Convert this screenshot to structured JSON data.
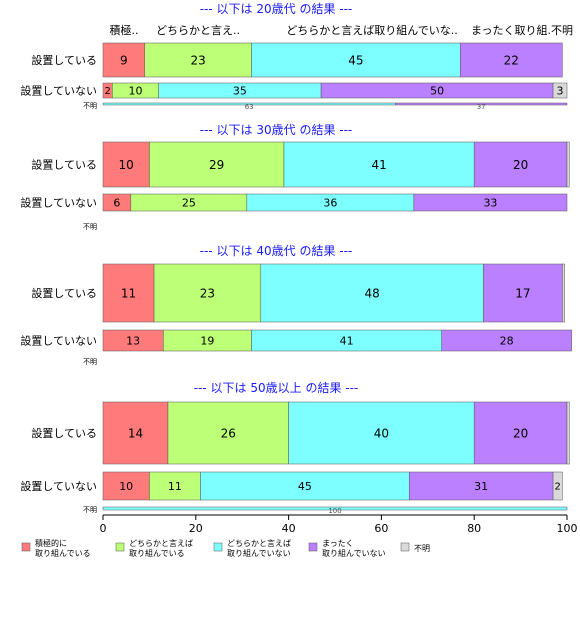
{
  "chart_data": {
    "type": "bar",
    "orientation": "horizontal",
    "stacked": true,
    "xlim": [
      0,
      100
    ],
    "xticks": [
      "0",
      "20",
      "40",
      "60",
      "80",
      "100"
    ],
    "grid": false,
    "legend_position": "bottom",
    "column_headers": [
      "積極..",
      "どちらかと言え..",
      "どちらかと言えば取り組んでいな..",
      "まったく取り組.不明"
    ],
    "series": [
      {
        "name": "積極的に\n取り組んでいる",
        "color": "#ff7b7b"
      },
      {
        "name": "どちらかと言えば\n取り組んでいる",
        "color": "#bdff76"
      },
      {
        "name": "どちらかと言えば\n取り組んでいない",
        "color": "#7dffff"
      },
      {
        "name": "まったく\n取り組んでいない",
        "color": "#bb80ff"
      },
      {
        "name": "不明",
        "color": "#d9d9d9"
      }
    ],
    "panels": [
      {
        "title": "--- 以下は 20歳代 の結果 ---",
        "rows": [
          {
            "label": "設置している",
            "values": [
              9,
              23,
              45,
              22,
              0
            ],
            "labels": [
              "9",
              "23",
              "45",
              "22",
              ""
            ]
          },
          {
            "label": "設置していない",
            "values": [
              2,
              10,
              35,
              50,
              3
            ],
            "labels": [
              "2",
              "10",
              "35",
              "50",
              "3"
            ]
          },
          {
            "label": "不明",
            "values": [
              0,
              0,
              63,
              37,
              0
            ],
            "labels": [
              "",
              "",
              "63",
              "37",
              ""
            ]
          }
        ]
      },
      {
        "title": "--- 以下は 30歳代 の結果 ---",
        "rows": [
          {
            "label": "設置している",
            "values": [
              10,
              29,
              41,
              20,
              0.5
            ],
            "labels": [
              "10",
              "29",
              "41",
              "20",
              ""
            ]
          },
          {
            "label": "設置していない",
            "values": [
              6,
              25,
              36,
              33,
              0
            ],
            "labels": [
              "6",
              "25",
              "36",
              "33",
              ""
            ]
          },
          {
            "label": "不明",
            "values": [
              0,
              0,
              0,
              0,
              0
            ],
            "labels": [
              "",
              "",
              "",
              "",
              ""
            ]
          }
        ]
      },
      {
        "title": "--- 以下は 40歳代 の結果 ---",
        "rows": [
          {
            "label": "設置している",
            "values": [
              11,
              23,
              48,
              17,
              0.5
            ],
            "labels": [
              "11",
              "23",
              "48",
              "17",
              ""
            ]
          },
          {
            "label": "設置していない",
            "values": [
              13,
              19,
              41,
              28,
              0
            ],
            "labels": [
              "13",
              "19",
              "41",
              "28",
              ""
            ]
          },
          {
            "label": "不明",
            "values": [
              0,
              0,
              0,
              0,
              0
            ],
            "labels": [
              "",
              "",
              "",
              "",
              ""
            ]
          }
        ]
      },
      {
        "title": "--- 以下は 50歳以上 の結果 ---",
        "rows": [
          {
            "label": "設置している",
            "values": [
              14,
              26,
              40,
              20,
              0.5
            ],
            "labels": [
              "14",
              "26",
              "40",
              "20",
              ""
            ]
          },
          {
            "label": "設置していない",
            "values": [
              10,
              11,
              45,
              31,
              2
            ],
            "labels": [
              "10",
              "11",
              "45",
              "31",
              "2"
            ]
          },
          {
            "label": "不明",
            "values": [
              0,
              0,
              100,
              0,
              0
            ],
            "labels": [
              "",
              "",
              "100",
              "",
              ""
            ]
          }
        ]
      }
    ]
  }
}
